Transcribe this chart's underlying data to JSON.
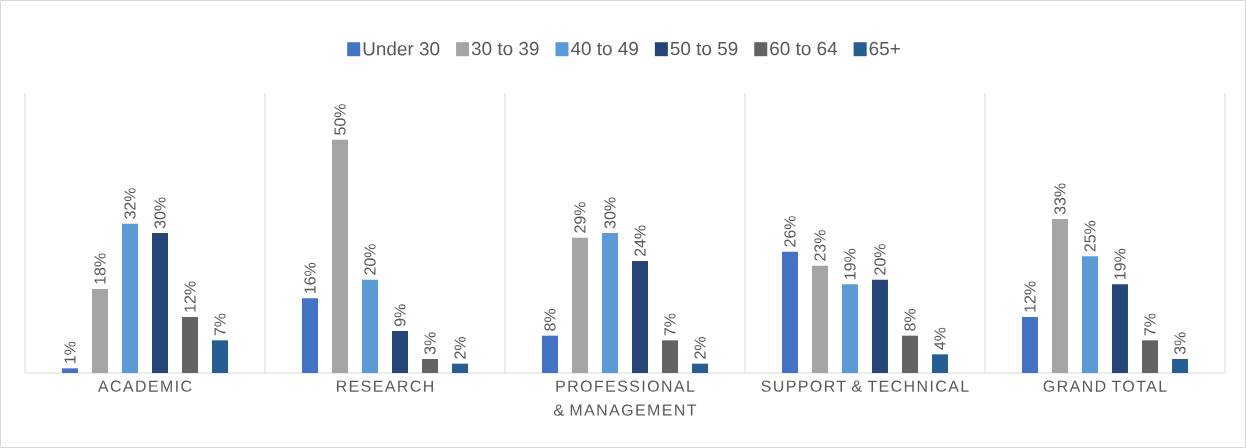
{
  "chart_data": {
    "type": "bar",
    "categories": [
      "ACADEMIC",
      "RESEARCH",
      "PROFESSIONAL & MANAGEMENT",
      "SUPPORT & TECHNICAL",
      "GRAND TOTAL"
    ],
    "legend": "top",
    "series": [
      {
        "name": "Under 30",
        "color": "#4472c4",
        "values": [
          1,
          16,
          8,
          26,
          12
        ],
        "value_labels": [
          "1%",
          "16%",
          "8%",
          "26%",
          "12%"
        ]
      },
      {
        "name": "30 to 39",
        "color": "#a5a5a5",
        "values": [
          18,
          50,
          29,
          23,
          33
        ],
        "value_labels": [
          "18%",
          "50%",
          "29%",
          "23%",
          "33%"
        ]
      },
      {
        "name": "40 to 49",
        "color": "#5b9bd5",
        "values": [
          32,
          20,
          30,
          19,
          25
        ],
        "value_labels": [
          "32%",
          "20%",
          "30%",
          "19%",
          "25%"
        ]
      },
      {
        "name": "50 to 59",
        "color": "#264478",
        "values": [
          30,
          9,
          24,
          20,
          19
        ],
        "value_labels": [
          "30%",
          "9%",
          "24%",
          "20%",
          "19%"
        ]
      },
      {
        "name": "60 to 64",
        "color": "#636363",
        "values": [
          12,
          3,
          7,
          8,
          7
        ],
        "value_labels": [
          "12%",
          "3%",
          "7%",
          "8%",
          "7%"
        ]
      },
      {
        "name": "65+",
        "color": "#255e91",
        "values": [
          7,
          2,
          2,
          4,
          3
        ],
        "value_labels": [
          "7%",
          "2%",
          "2%",
          "4%",
          "3%"
        ]
      }
    ]
  }
}
